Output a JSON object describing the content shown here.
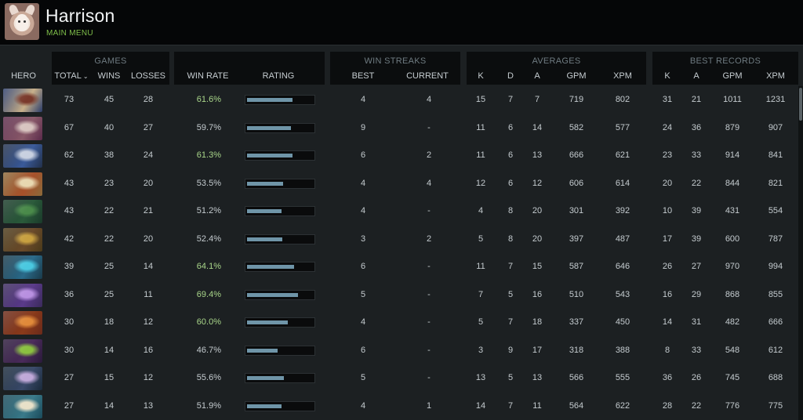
{
  "header": {
    "player_name": "Harrison",
    "main_menu": "MAIN MENU"
  },
  "groups": {
    "games": "GAMES",
    "win_streaks": "WIN STREAKS",
    "averages": "AVERAGES",
    "best_records": "BEST RECORDS"
  },
  "columns": {
    "hero": "HERO",
    "total": "TOTAL",
    "wins": "WINS",
    "losses": "LOSSES",
    "win_rate": "WIN RATE",
    "rating": "RATING",
    "best": "BEST",
    "current": "CURRENT",
    "avg_k": "K",
    "avg_d": "D",
    "avg_a": "A",
    "avg_gpm": "GPM",
    "avg_xpm": "XPM",
    "rec_k": "K",
    "rec_a": "A",
    "rec_gpm": "GPM",
    "rec_xpm": "XPM"
  },
  "sort_icon": "chevron-down-icon",
  "colors": {
    "win_rate_high": "#a9d68a",
    "rating_bar": "#6f95a8",
    "main_menu": "#7fbf4a"
  },
  "rows": [
    {
      "portrait": [
        "#2a3c6a",
        "#7a3a2c",
        "#c8b08a"
      ],
      "total": "73",
      "wins": "45",
      "losses": "28",
      "win_rate": "61.6%",
      "high": true,
      "rating": 0.68,
      "best": "4",
      "current": "4",
      "k": "15",
      "d": "7",
      "a": "7",
      "gpm": "719",
      "xpm": "802",
      "rk": "31",
      "ra": "21",
      "rgpm": "1011",
      "rxpm": "1231"
    },
    {
      "portrait": [
        "#5a2a4a",
        "#d8c4c0",
        "#8a5a6a"
      ],
      "total": "67",
      "wins": "40",
      "losses": "27",
      "win_rate": "59.7%",
      "high": false,
      "rating": 0.65,
      "best": "9",
      "current": "-",
      "k": "11",
      "d": "6",
      "a": "14",
      "gpm": "582",
      "xpm": "577",
      "rk": "24",
      "ra": "36",
      "rgpm": "879",
      "rxpm": "907"
    },
    {
      "portrait": [
        "#22304a",
        "#c8d0e0",
        "#3a5a9a"
      ],
      "total": "62",
      "wins": "38",
      "losses": "24",
      "win_rate": "61.3%",
      "high": true,
      "rating": 0.67,
      "best": "6",
      "current": "2",
      "k": "11",
      "d": "6",
      "a": "13",
      "gpm": "666",
      "xpm": "621",
      "rk": "23",
      "ra": "33",
      "rgpm": "914",
      "rxpm": "841"
    },
    {
      "portrait": [
        "#8a6a3a",
        "#e8d8b0",
        "#a8502a"
      ],
      "total": "43",
      "wins": "23",
      "losses": "20",
      "win_rate": "53.5%",
      "high": false,
      "rating": 0.54,
      "best": "4",
      "current": "4",
      "k": "12",
      "d": "6",
      "a": "12",
      "gpm": "606",
      "xpm": "614",
      "rk": "20",
      "ra": "22",
      "rgpm": "844",
      "rxpm": "821"
    },
    {
      "portrait": [
        "#1a3a2a",
        "#4a8a4a",
        "#2a5a3a"
      ],
      "total": "43",
      "wins": "22",
      "losses": "21",
      "win_rate": "51.2%",
      "high": false,
      "rating": 0.51,
      "best": "4",
      "current": "-",
      "k": "4",
      "d": "8",
      "a": "20",
      "gpm": "301",
      "xpm": "392",
      "rk": "10",
      "ra": "39",
      "rgpm": "431",
      "rxpm": "554"
    },
    {
      "portrait": [
        "#4a3a1a",
        "#c8a040",
        "#6a4a2a"
      ],
      "total": "42",
      "wins": "22",
      "losses": "20",
      "win_rate": "52.4%",
      "high": false,
      "rating": 0.52,
      "best": "3",
      "current": "2",
      "k": "5",
      "d": "8",
      "a": "20",
      "gpm": "397",
      "xpm": "487",
      "rk": "17",
      "ra": "39",
      "rgpm": "600",
      "rxpm": "787"
    },
    {
      "portrait": [
        "#1a3a4a",
        "#4ac8e0",
        "#2a6a8a"
      ],
      "total": "39",
      "wins": "25",
      "losses": "14",
      "win_rate": "64.1%",
      "high": true,
      "rating": 0.7,
      "best": "6",
      "current": "-",
      "k": "11",
      "d": "7",
      "a": "15",
      "gpm": "587",
      "xpm": "646",
      "rk": "26",
      "ra": "27",
      "rgpm": "970",
      "rxpm": "994"
    },
    {
      "portrait": [
        "#3a2a5a",
        "#b890e0",
        "#5a3a8a"
      ],
      "total": "36",
      "wins": "25",
      "losses": "11",
      "win_rate": "69.4%",
      "high": true,
      "rating": 0.76,
      "best": "5",
      "current": "-",
      "k": "7",
      "d": "5",
      "a": "16",
      "gpm": "510",
      "xpm": "543",
      "rk": "16",
      "ra": "29",
      "rgpm": "868",
      "rxpm": "855"
    },
    {
      "portrait": [
        "#6a2a1a",
        "#e08a3a",
        "#8a3a1a"
      ],
      "total": "30",
      "wins": "18",
      "losses": "12",
      "win_rate": "60.0%",
      "high": true,
      "rating": 0.61,
      "best": "4",
      "current": "-",
      "k": "5",
      "d": "7",
      "a": "18",
      "gpm": "337",
      "xpm": "450",
      "rk": "14",
      "ra": "31",
      "rgpm": "482",
      "rxpm": "666"
    },
    {
      "portrait": [
        "#2a1a3a",
        "#8ac040",
        "#4a2a5a"
      ],
      "total": "30",
      "wins": "14",
      "losses": "16",
      "win_rate": "46.7%",
      "high": false,
      "rating": 0.45,
      "best": "6",
      "current": "-",
      "k": "3",
      "d": "9",
      "a": "17",
      "gpm": "318",
      "xpm": "388",
      "rk": "8",
      "ra": "33",
      "rgpm": "548",
      "rxpm": "612"
    },
    {
      "portrait": [
        "#1a2a3a",
        "#c0a8d8",
        "#3a4a6a"
      ],
      "total": "27",
      "wins": "15",
      "losses": "12",
      "win_rate": "55.6%",
      "high": false,
      "rating": 0.55,
      "best": "5",
      "current": "-",
      "k": "13",
      "d": "5",
      "a": "13",
      "gpm": "566",
      "xpm": "555",
      "rk": "36",
      "ra": "26",
      "rgpm": "745",
      "rxpm": "688"
    },
    {
      "portrait": [
        "#1a4a5a",
        "#e8e0c8",
        "#3a7a8a"
      ],
      "total": "27",
      "wins": "14",
      "losses": "13",
      "win_rate": "51.9%",
      "high": false,
      "rating": 0.51,
      "best": "4",
      "current": "1",
      "k": "14",
      "d": "7",
      "a": "11",
      "gpm": "564",
      "xpm": "622",
      "rk": "28",
      "ra": "22",
      "rgpm": "776",
      "rxpm": "775"
    }
  ]
}
